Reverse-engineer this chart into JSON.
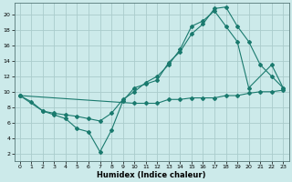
{
  "xlabel": "Humidex (Indice chaleur)",
  "bg_color": "#cceaea",
  "line_color": "#1a7a6e",
  "grid_color": "#aacccc",
  "xlim": [
    -0.5,
    23.5
  ],
  "ylim": [
    1,
    21.5
  ],
  "xticks": [
    0,
    1,
    2,
    3,
    4,
    5,
    6,
    7,
    8,
    9,
    10,
    11,
    12,
    13,
    14,
    15,
    16,
    17,
    18,
    19,
    20,
    21,
    22,
    23
  ],
  "yticks": [
    2,
    4,
    6,
    8,
    10,
    12,
    14,
    16,
    18,
    20
  ],
  "line1_x": [
    0,
    1,
    2,
    3,
    4,
    5,
    6,
    7,
    8,
    9,
    10,
    11,
    12,
    13,
    14,
    15,
    16,
    17,
    18,
    19,
    20,
    21,
    22,
    23
  ],
  "line1_y": [
    9.5,
    8.7,
    7.5,
    7.0,
    6.5,
    5.2,
    4.8,
    2.2,
    5.0,
    8.8,
    10.5,
    11.0,
    11.5,
    13.8,
    15.2,
    17.5,
    18.8,
    20.8,
    21.0,
    18.5,
    16.5,
    13.5,
    12.0,
    10.5
  ],
  "line2_x": [
    0,
    2,
    3,
    4,
    5,
    6,
    7,
    8,
    9,
    10,
    11,
    12,
    13,
    14,
    15,
    16,
    17,
    18,
    19,
    20,
    22,
    23
  ],
  "line2_y": [
    9.5,
    7.5,
    7.2,
    7.0,
    6.8,
    6.5,
    6.2,
    7.2,
    9.0,
    10.0,
    11.2,
    12.0,
    13.5,
    15.5,
    18.5,
    19.2,
    20.5,
    18.5,
    16.5,
    10.5,
    13.5,
    10.5
  ],
  "line3_x": [
    0,
    10,
    11,
    12,
    13,
    14,
    15,
    16,
    17,
    18,
    19,
    20,
    21,
    22,
    23
  ],
  "line3_y": [
    9.5,
    8.5,
    8.5,
    8.5,
    9.0,
    9.0,
    9.2,
    9.2,
    9.2,
    9.5,
    9.5,
    9.8,
    10.0,
    10.0,
    10.2
  ]
}
